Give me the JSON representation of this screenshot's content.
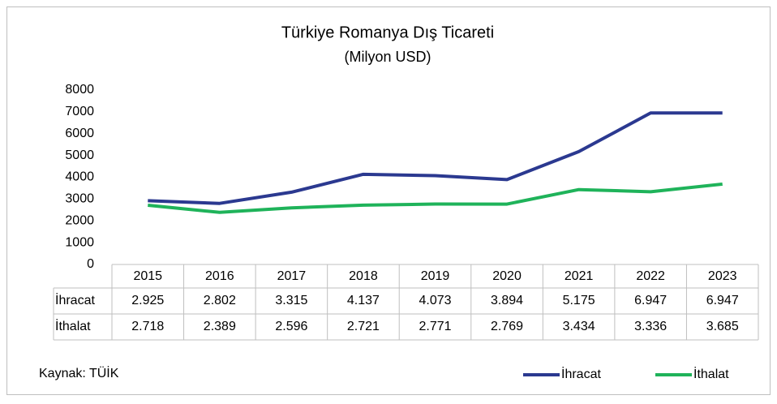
{
  "chart_data": {
    "type": "line",
    "title": "Türkiye Romanya Dış Ticareti",
    "subtitle": "(Milyon USD)",
    "categories": [
      "2015",
      "2016",
      "2017",
      "2018",
      "2019",
      "2020",
      "2021",
      "2022",
      "2023"
    ],
    "series": [
      {
        "name": "İhracat",
        "color": "#2b3990",
        "values": [
          2925,
          2802,
          3315,
          4137,
          4073,
          3894,
          5175,
          6947,
          6947
        ],
        "value_labels": [
          "2.925",
          "2.802",
          "3.315",
          "4.137",
          "4.073",
          "3.894",
          "5.175",
          "6.947",
          "6.947"
        ]
      },
      {
        "name": "İthalat",
        "color": "#1fb35a",
        "values": [
          2718,
          2389,
          2596,
          2721,
          2771,
          2769,
          3434,
          3336,
          3685
        ],
        "value_labels": [
          "2.718",
          "2.389",
          "2.596",
          "2.721",
          "2.771",
          "2.769",
          "3.434",
          "3.336",
          "3.685"
        ]
      }
    ],
    "ylim": [
      0,
      8000
    ],
    "yticks": [
      0,
      1000,
      2000,
      3000,
      4000,
      5000,
      6000,
      7000,
      8000
    ],
    "source": "Kaynak: TÜİK",
    "legend": "bottom-right"
  }
}
